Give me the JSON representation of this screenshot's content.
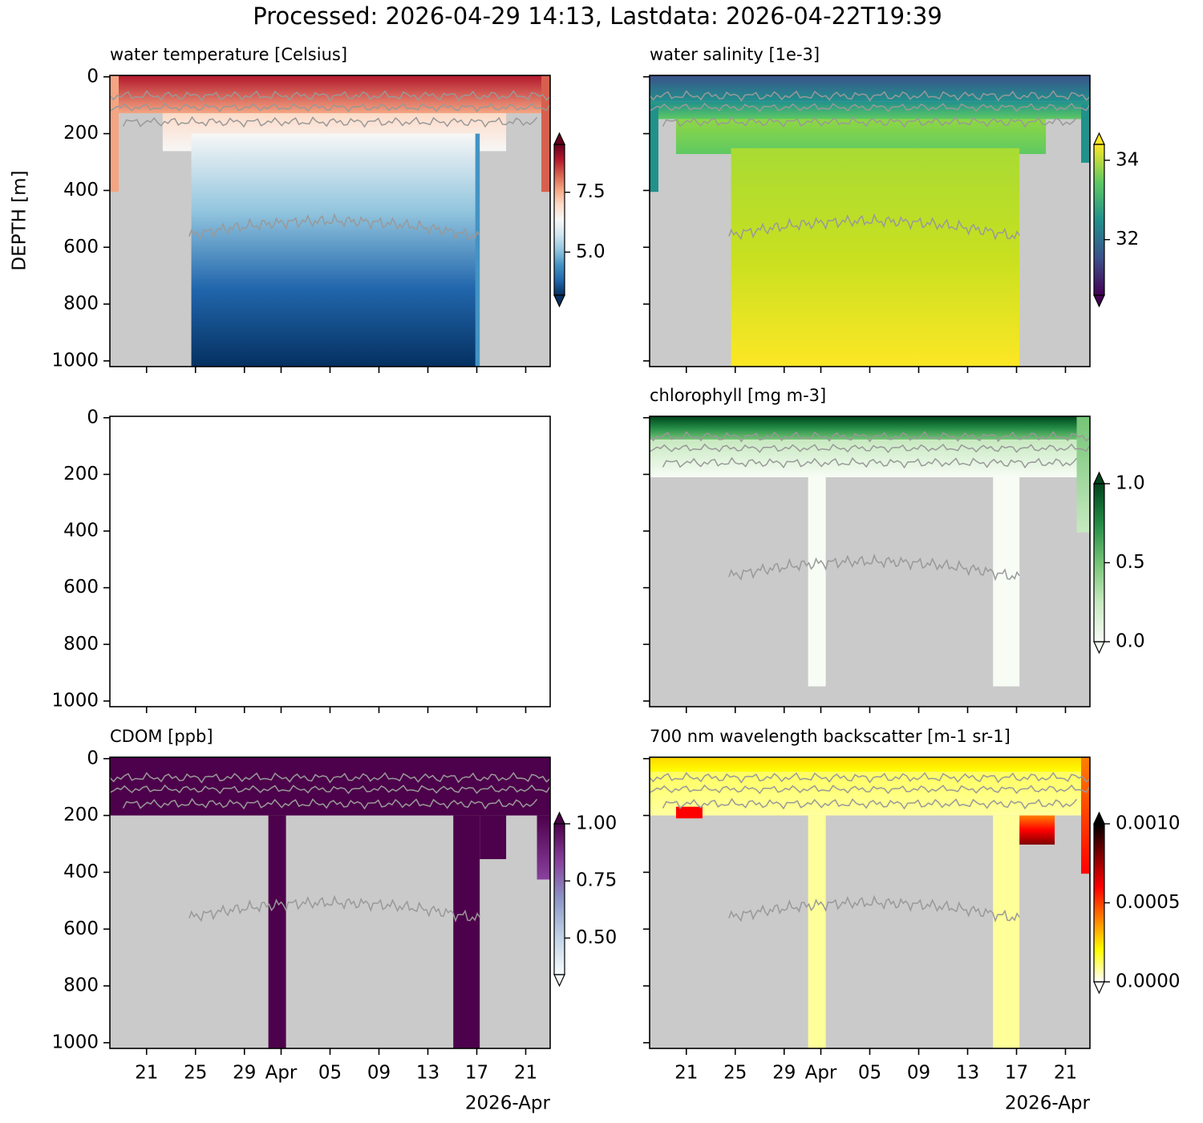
{
  "title": "Processed: 2026-04-29 14:13, Lastdata: 2026-04-22T19:39",
  "x_axis": {
    "xlim": [
      "2026-03-18",
      "2026-04-23"
    ],
    "xticks": [
      {
        "value": "2026-03-21",
        "label": "21"
      },
      {
        "value": "2026-03-25",
        "label": "25"
      },
      {
        "value": "2026-03-29",
        "label": "29"
      },
      {
        "value": "2026-04-01",
        "label": "Apr"
      },
      {
        "value": "2026-04-05",
        "label": "05"
      },
      {
        "value": "2026-04-09",
        "label": "09"
      },
      {
        "value": "2026-04-13",
        "label": "13"
      },
      {
        "value": "2026-04-17",
        "label": "17"
      },
      {
        "value": "2026-04-21",
        "label": "21"
      }
    ],
    "offset_label": "2026-Apr"
  },
  "chart_data": [
    {
      "type": "heatmap",
      "title": "water temperature [Celsius]",
      "ylabel": "DEPTH [m]",
      "ylim": [
        1020,
        -5
      ],
      "yticks": [
        0,
        200,
        400,
        600,
        800,
        1000
      ],
      "colorbar": {
        "colors": [
          "#053061",
          "#2166ac",
          "#4393c3",
          "#92c5de",
          "#d1e5f0",
          "#f7f7f7",
          "#fddbc7",
          "#f4a582",
          "#d6604d",
          "#b2182b",
          "#67001f"
        ],
        "clim": [
          3.2,
          9.5
        ],
        "ticks": [
          {
            "value": 5,
            "label": "5.0"
          },
          7.5
        ],
        "extend": "both"
      }
    },
    {
      "type": "heatmap",
      "title": "water salinity [1e-3]",
      "ylim": [
        1020,
        -5
      ],
      "yticks": [
        0,
        200,
        400,
        600,
        800,
        1000
      ],
      "colorbar": {
        "colors": [
          "#440154",
          "#3b528b",
          "#21918c",
          "#5ec962",
          "#fde725"
        ],
        "clim": [
          30.6,
          34.4
        ],
        "ticks": [
          32,
          34
        ],
        "extend": "both"
      }
    },
    {
      "type": "heatmap",
      "ylim": [
        1020,
        -5
      ],
      "yticks": [
        0,
        200,
        400,
        600,
        800,
        1000
      ]
    },
    {
      "type": "heatmap",
      "title": "chlorophyll [mg m-3]",
      "ylim": [
        1020,
        -5
      ],
      "yticks": [
        0,
        200,
        400,
        600,
        800,
        1000
      ],
      "colorbar": {
        "colors": [
          "#f7fcf5",
          "#c7e9c0",
          "#74c476",
          "#238b45",
          "#00441b"
        ],
        "clim": [
          0,
          1
        ],
        "ticks": [
          {
            "value": 0,
            "label": "0.0"
          },
          {
            "value": 0.5,
            "label": "0.5"
          },
          {
            "value": 1,
            "label": "1.0"
          }
        ],
        "extend": "both"
      }
    },
    {
      "type": "heatmap",
      "title": "CDOM [ppb]",
      "ylim": [
        1020,
        -5
      ],
      "yticks": [
        0,
        200,
        400,
        600,
        800,
        1000
      ],
      "colorbar": {
        "colors": [
          "#f7fcfd",
          "#bfd3e6",
          "#8c96c6",
          "#88419d",
          "#4d004b"
        ],
        "clim": [
          0.34,
          1.0
        ],
        "ticks": [
          {
            "value": 0.5,
            "label": "0.50"
          },
          0.75,
          {
            "value": 1,
            "label": "1.00"
          }
        ],
        "extend": "both"
      }
    },
    {
      "type": "heatmap",
      "title": "700 nm wavelength backscatter [m-1 sr-1]",
      "ylim": [
        1020,
        -5
      ],
      "yticks": [
        0,
        200,
        400,
        600,
        800,
        1000
      ],
      "colorbar": {
        "colors": [
          "#ffffff",
          "#ffff00",
          "#ff8000",
          "#ff0000",
          "#800000",
          "#000000"
        ],
        "clim": [
          0,
          0.001
        ],
        "ticks": [
          {
            "value": 0,
            "label": "0.0000"
          },
          {
            "value": 0.0005,
            "label": "0.0005"
          },
          {
            "value": 0.001,
            "label": "0.0010"
          }
        ],
        "extend": "both"
      }
    }
  ]
}
